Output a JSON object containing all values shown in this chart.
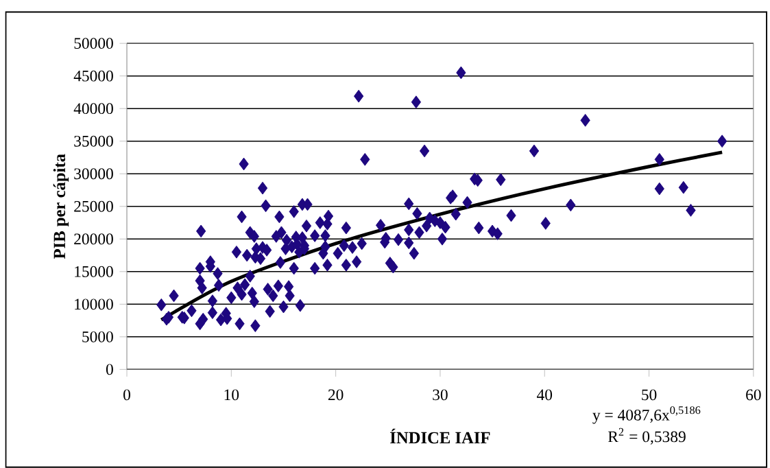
{
  "chart_data": {
    "type": "scatter",
    "xlabel": "ÍNDICE IAIF",
    "ylabel": "PIB per cápita",
    "xlim": [
      0,
      60
    ],
    "xticks": [
      0,
      10,
      20,
      30,
      40,
      50,
      60
    ],
    "ylim": [
      0,
      50000
    ],
    "yticks": [
      0,
      5000,
      10000,
      15000,
      20000,
      25000,
      30000,
      35000,
      40000,
      45000,
      50000
    ],
    "grid": "y",
    "annotations": [
      "y = 4087,6x$^{0,5186}$",
      "R$^{2}$ = 0,5389"
    ],
    "series": [
      {
        "color": "#1e0780",
        "marker": "diamond",
        "x": [
          3.3,
          3.8,
          4.0,
          4.5,
          5.3,
          5.5,
          6.2,
          7.0,
          7.0,
          7.0,
          7.1,
          7.2,
          7.3,
          8.0,
          8.0,
          8.2,
          8.2,
          8.7,
          8.8,
          9.0,
          9.5,
          9.6,
          10.0,
          10.5,
          10.6,
          10.8,
          11.0,
          11.0,
          11.2,
          11.3,
          11.5,
          11.8,
          11.8,
          12.0,
          12.2,
          12.2,
          12.3,
          12.3,
          12.4,
          12.8,
          13.0,
          13.0,
          13.3,
          13.4,
          13.5,
          13.7,
          14.0,
          14.3,
          14.5,
          14.6,
          14.7,
          14.8,
          15.0,
          15.2,
          15.3,
          15.5,
          15.6,
          15.8,
          16.0,
          16.0,
          16.2,
          16.3,
          16.5,
          16.6,
          16.8,
          16.8,
          17.0,
          17.0,
          17.3,
          17.2,
          18.0,
          18.0,
          18.5,
          18.8,
          19.0,
          19.0,
          19.2,
          19.2,
          19.3,
          20.2,
          20.8,
          21.0,
          21.0,
          21.6,
          22.0,
          22.2,
          22.5,
          22.8,
          24.3,
          24.7,
          24.8,
          25.2,
          25.5,
          26.0,
          27.0,
          27.0,
          27.0,
          27.5,
          27.7,
          27.8,
          28.0,
          28.5,
          28.7,
          29.0,
          29.5,
          30.0,
          30.2,
          30.5,
          31.0,
          31.2,
          31.5,
          32.0,
          32.6,
          33.3,
          33.6,
          33.7,
          35.0,
          35.5,
          35.8,
          36.8,
          39.0,
          40.1,
          42.5,
          43.9,
          51.0,
          51.0,
          53.3,
          54.0,
          57.0
        ],
        "values": [
          9900,
          7700,
          8000,
          11300,
          8000,
          7900,
          9000,
          7000,
          13600,
          15500,
          21200,
          12500,
          7700,
          16500,
          15800,
          10500,
          8700,
          14700,
          12900,
          7600,
          8600,
          7800,
          11000,
          18000,
          12500,
          7000,
          11500,
          23400,
          31500,
          13000,
          17500,
          21000,
          14300,
          11700,
          10400,
          20400,
          6700,
          17200,
          18500,
          17000,
          18700,
          27800,
          25100,
          18300,
          12300,
          8900,
          11300,
          20400,
          12800,
          23400,
          16400,
          21000,
          9600,
          18500,
          19800,
          12700,
          11300,
          18800,
          24200,
          15500,
          20300,
          19200,
          18000,
          9800,
          20200,
          25300,
          19000,
          18500,
          25300,
          22000,
          20500,
          15500,
          22500,
          17800,
          18800,
          20500,
          22300,
          16000,
          23500,
          17800,
          19000,
          21700,
          16000,
          18700,
          16500,
          41900,
          19300,
          32200,
          22100,
          19500,
          20100,
          16300,
          15700,
          19900,
          25400,
          19400,
          21400,
          17800,
          41000,
          23900,
          21000,
          33500,
          22000,
          23200,
          22800,
          22500,
          20000,
          21800,
          26300,
          26600,
          23800,
          45500,
          25600,
          29200,
          29000,
          21700,
          21200,
          20800,
          29100,
          23600,
          33500,
          22400,
          25200,
          38200,
          32200,
          27700,
          27900,
          24400,
          35000
        ]
      },
      {
        "type": "line",
        "color": "#000000",
        "marker": "none",
        "x": [
          3.3,
          10,
          20,
          30,
          40,
          50,
          57
        ],
        "values": [
          7600,
          13500,
          19300,
          23800,
          27700,
          31100,
          33300
        ]
      }
    ]
  }
}
